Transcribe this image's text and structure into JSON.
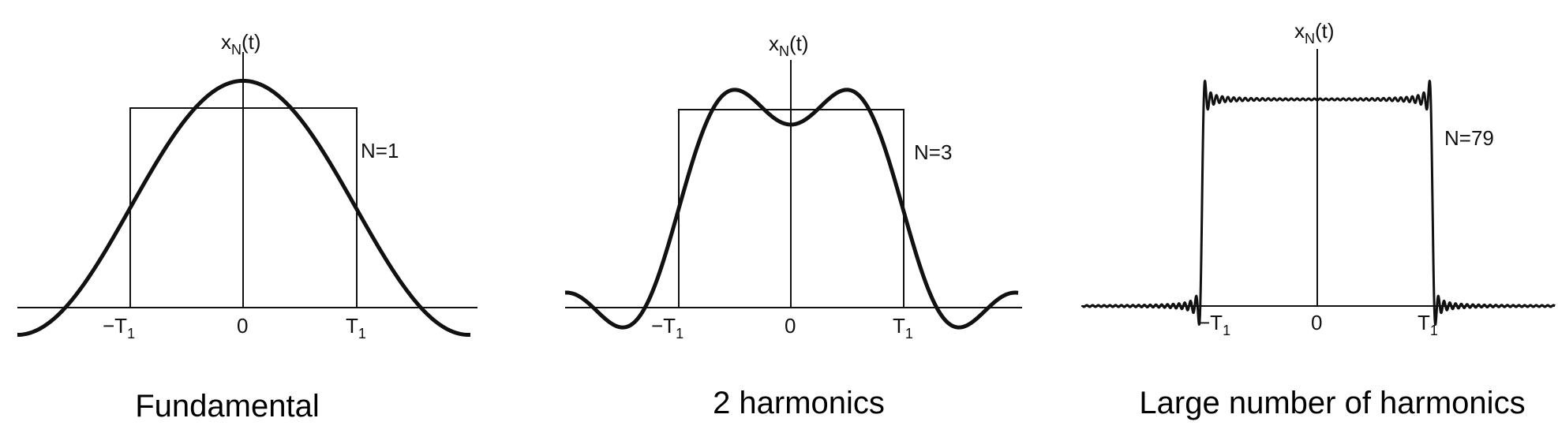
{
  "panels": [
    {
      "ylabel_base": "x",
      "ylabel_sub": "N",
      "ylabel_tail": "(t)",
      "n_label": "N=1",
      "tick_neg_base": "−T",
      "tick_neg_sub": "1",
      "tick_zero": "0",
      "tick_pos_base": "T",
      "tick_pos_sub": "1",
      "caption": "Fundamental",
      "harmonics": 1
    },
    {
      "ylabel_base": "x",
      "ylabel_sub": "N",
      "ylabel_tail": "(t)",
      "n_label": "N=3",
      "tick_neg_base": "−T",
      "tick_neg_sub": "1",
      "tick_zero": "0",
      "tick_pos_base": "T",
      "tick_pos_sub": "1",
      "caption": "2 harmonics",
      "harmonics": 3
    },
    {
      "ylabel_base": "x",
      "ylabel_sub": "N",
      "ylabel_tail": "(t)",
      "n_label": "N=79",
      "tick_neg_base": "−T",
      "tick_neg_sub": "1",
      "tick_zero": "0",
      "tick_pos_base": "T",
      "tick_pos_sub": "1",
      "caption": "Large number of harmonics",
      "harmonics": 79
    }
  ]
}
